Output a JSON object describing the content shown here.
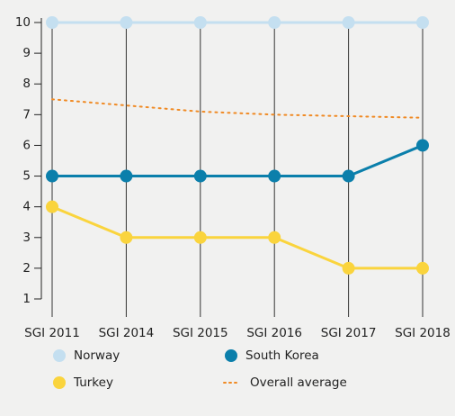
{
  "chart_data": {
    "type": "line",
    "categories": [
      "SGI 2011",
      "SGI 2014",
      "SGI 2015",
      "SGI 2016",
      "SGI 2017",
      "SGI 2018"
    ],
    "series": [
      {
        "name": "Norway",
        "color": "#c4dff0",
        "values": [
          10,
          10,
          10,
          10,
          10,
          10
        ],
        "markers": true
      },
      {
        "name": "South Korea",
        "color": "#0b7fab",
        "values": [
          5,
          5,
          5,
          5,
          5,
          6
        ],
        "markers": true
      },
      {
        "name": "Turkey",
        "color": "#fad43d",
        "values": [
          4,
          3,
          3,
          3,
          2,
          2
        ],
        "markers": true
      },
      {
        "name": "Overall average",
        "color": "#f08a24",
        "values": [
          7.5,
          7.3,
          7.1,
          7.0,
          6.95,
          6.9
        ],
        "markers": false,
        "dash": "dotted"
      }
    ],
    "ylim": [
      1,
      10
    ],
    "yticks": [
      1,
      2,
      3,
      4,
      5,
      6,
      7,
      8,
      9,
      10
    ]
  }
}
